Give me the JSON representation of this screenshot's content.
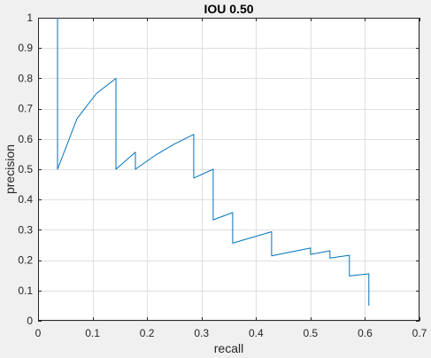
{
  "chart_data": {
    "type": "line",
    "title": "IOU 0.50",
    "xlabel": "recall",
    "ylabel": "precision",
    "xlim": [
      0,
      0.7
    ],
    "ylim": [
      0,
      1
    ],
    "xticks": [
      "0",
      "0.1",
      "0.2",
      "0.3",
      "0.4",
      "0.5",
      "0.6",
      "0.7"
    ],
    "yticks": [
      "0",
      "0.1",
      "0.2",
      "0.3",
      "0.4",
      "0.5",
      "0.6",
      "0.7",
      "0.8",
      "0.9",
      "1"
    ],
    "grid": true,
    "series": [
      {
        "color": "#0072bd",
        "x": [
          0.0357,
          0.0357,
          0.0357,
          0.0714,
          0.1071,
          0.1429,
          0.1429,
          0.1786,
          0.1786,
          0.2143,
          0.25,
          0.2857,
          0.2857,
          0.3214,
          0.3214,
          0.3571,
          0.3571,
          0.4286,
          0.4286,
          0.5,
          0.5,
          0.5357,
          0.5357,
          0.5714,
          0.5714,
          0.6071,
          0.6071
        ],
        "y": [
          1.0,
          0.5,
          0.5,
          0.667,
          0.75,
          0.8,
          0.5,
          0.556,
          0.5,
          0.545,
          0.583,
          0.615,
          0.471,
          0.5,
          0.333,
          0.357,
          0.256,
          0.294,
          0.214,
          0.24,
          0.219,
          0.231,
          0.207,
          0.216,
          0.148,
          0.155,
          0.05
        ]
      }
    ]
  }
}
